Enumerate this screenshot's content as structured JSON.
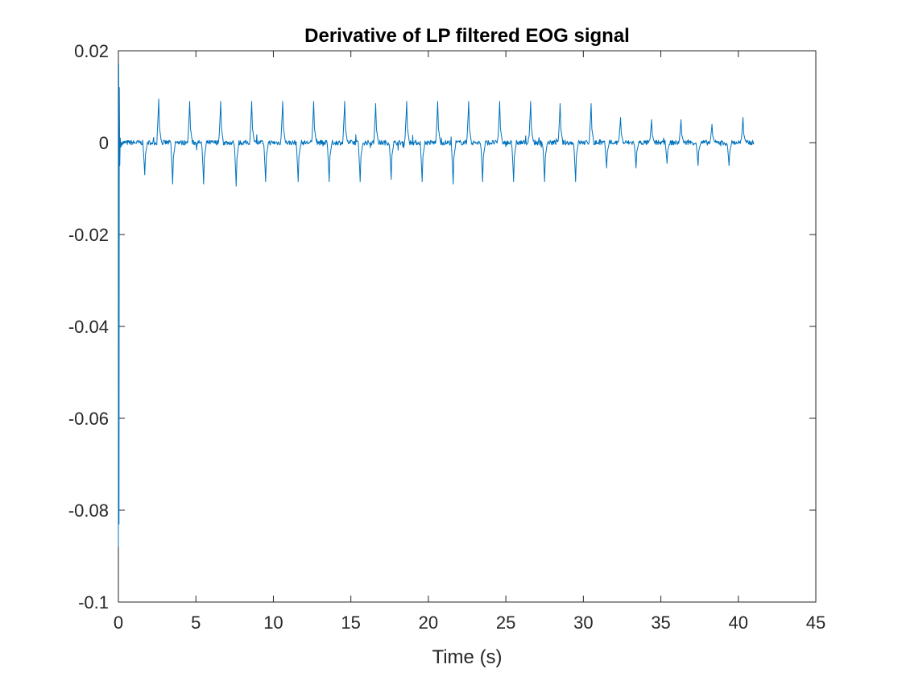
{
  "chart_data": {
    "type": "line",
    "title": "Derivative of LP filtered EOG signal",
    "xlabel": "Time (s)",
    "ylabel": "",
    "xlim": [
      0,
      45
    ],
    "ylim": [
      -0.1,
      0.02
    ],
    "xticks": [
      0,
      5,
      10,
      15,
      20,
      25,
      30,
      35,
      40,
      45
    ],
    "yticks": [
      -0.1,
      -0.08,
      -0.06,
      -0.04,
      -0.02,
      0,
      0.02
    ],
    "xtick_labels": [
      "0",
      "5",
      "10",
      "15",
      "20",
      "25",
      "30",
      "35",
      "40",
      "45"
    ],
    "ytick_labels": [
      "-0.1",
      "-0.08",
      "-0.06",
      "-0.04",
      "-0.02",
      "0",
      "0.02"
    ],
    "grid": false,
    "legend": false,
    "line_color": "#0072BD",
    "series": [
      {
        "x_range": [
          0,
          41
        ],
        "baseline": 0,
        "initial_transient": {
          "x": [
            0.0,
            0.02,
            0.04,
            0.06,
            0.09,
            0.12,
            0.16,
            0.22
          ],
          "y": [
            -0.088,
            0.017,
            -0.083,
            0.012,
            -0.005,
            0.001,
            -0.001,
            0.0
          ]
        },
        "positive_peaks": [
          {
            "x": 2.6,
            "y": 0.0095
          },
          {
            "x": 4.6,
            "y": 0.009
          },
          {
            "x": 6.6,
            "y": 0.009
          },
          {
            "x": 8.6,
            "y": 0.009
          },
          {
            "x": 10.6,
            "y": 0.009
          },
          {
            "x": 12.6,
            "y": 0.009
          },
          {
            "x": 14.6,
            "y": 0.009
          },
          {
            "x": 16.6,
            "y": 0.0085
          },
          {
            "x": 18.6,
            "y": 0.009
          },
          {
            "x": 20.6,
            "y": 0.009
          },
          {
            "x": 22.6,
            "y": 0.009
          },
          {
            "x": 24.6,
            "y": 0.009
          },
          {
            "x": 26.6,
            "y": 0.009
          },
          {
            "x": 28.5,
            "y": 0.0085
          },
          {
            "x": 30.5,
            "y": 0.0085
          },
          {
            "x": 32.4,
            "y": 0.0055
          },
          {
            "x": 34.4,
            "y": 0.005
          },
          {
            "x": 36.3,
            "y": 0.005
          },
          {
            "x": 38.3,
            "y": 0.004
          },
          {
            "x": 40.3,
            "y": 0.0055
          }
        ],
        "negative_peaks": [
          {
            "x": 1.7,
            "y": -0.007
          },
          {
            "x": 3.5,
            "y": -0.009
          },
          {
            "x": 5.5,
            "y": -0.009
          },
          {
            "x": 7.6,
            "y": -0.0095
          },
          {
            "x": 9.5,
            "y": -0.0085
          },
          {
            "x": 11.6,
            "y": -0.0085
          },
          {
            "x": 13.6,
            "y": -0.0085
          },
          {
            "x": 15.6,
            "y": -0.0085
          },
          {
            "x": 17.6,
            "y": -0.008
          },
          {
            "x": 19.6,
            "y": -0.0085
          },
          {
            "x": 21.6,
            "y": -0.009
          },
          {
            "x": 23.5,
            "y": -0.0085
          },
          {
            "x": 25.5,
            "y": -0.0085
          },
          {
            "x": 27.5,
            "y": -0.0085
          },
          {
            "x": 29.5,
            "y": -0.0085
          },
          {
            "x": 31.5,
            "y": -0.0055
          },
          {
            "x": 33.4,
            "y": -0.0055
          },
          {
            "x": 35.4,
            "y": -0.0045
          },
          {
            "x": 37.4,
            "y": -0.005
          },
          {
            "x": 39.4,
            "y": -0.005
          }
        ]
      }
    ]
  }
}
